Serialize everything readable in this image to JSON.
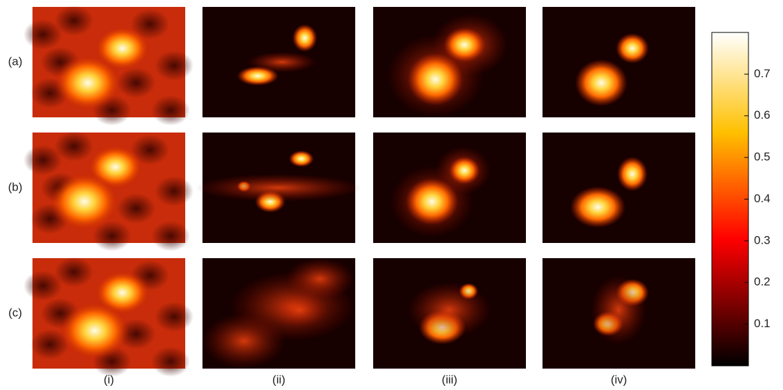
{
  "rows": [
    "(a)",
    "(b)",
    "(c)"
  ],
  "columns": [
    "(i)",
    "(ii)",
    "(iii)",
    "(iv)"
  ],
  "colorbar": {
    "lim": [
      0,
      0.8
    ],
    "ticks": [
      0.1,
      0.2,
      0.3,
      0.4,
      0.5,
      0.6,
      0.7
    ]
  }
}
